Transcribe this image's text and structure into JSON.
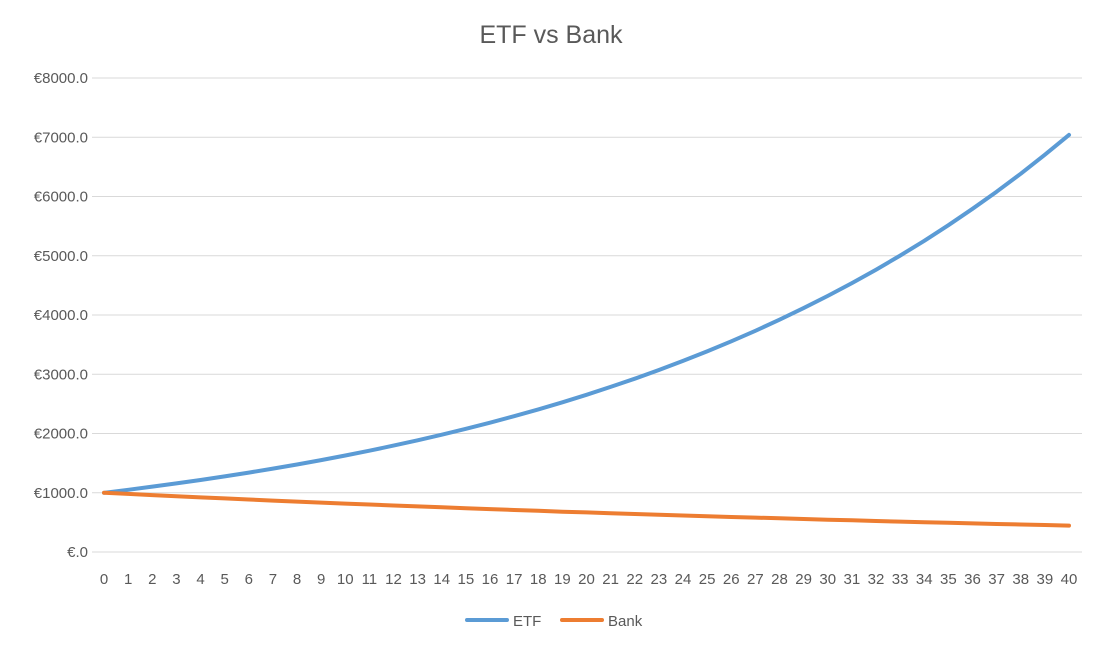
{
  "chart_data": {
    "type": "line",
    "title": "ETF vs Bank",
    "xlabel": "",
    "ylabel": "",
    "x": [
      0,
      1,
      2,
      3,
      4,
      5,
      6,
      7,
      8,
      9,
      10,
      11,
      12,
      13,
      14,
      15,
      16,
      17,
      18,
      19,
      20,
      21,
      22,
      23,
      24,
      25,
      26,
      27,
      28,
      29,
      30,
      31,
      32,
      33,
      34,
      35,
      36,
      37,
      38,
      39,
      40
    ],
    "ylim": [
      0,
      8000
    ],
    "yticks": [
      0,
      1000,
      2000,
      3000,
      4000,
      5000,
      6000,
      7000,
      8000
    ],
    "ytick_labels": [
      "€.0",
      "€1000.0",
      "€2000.0",
      "€3000.0",
      "€4000.0",
      "€5000.0",
      "€6000.0",
      "€7000.0",
      "€8000.0"
    ],
    "grid": true,
    "legend": "bottom",
    "series": [
      {
        "name": "ETF",
        "color": "#5b9bd5",
        "values": [
          1000,
          1050,
          1103,
          1158,
          1216,
          1276,
          1340,
          1407,
          1477,
          1551,
          1629,
          1710,
          1796,
          1886,
          1980,
          2079,
          2183,
          2292,
          2407,
          2527,
          2653,
          2786,
          2925,
          3072,
          3225,
          3386,
          3556,
          3733,
          3920,
          4116,
          4322,
          4538,
          4765,
          5003,
          5253,
          5516,
          5792,
          6081,
          6385,
          6705,
          7040
        ]
      },
      {
        "name": "Bank",
        "color": "#ed7d31",
        "values": [
          1000,
          980,
          960,
          941,
          922,
          904,
          886,
          868,
          851,
          834,
          817,
          801,
          785,
          769,
          754,
          739,
          724,
          709,
          695,
          681,
          668,
          654,
          641,
          628,
          616,
          603,
          591,
          580,
          568,
          557,
          545,
          535,
          524,
          513,
          503,
          493,
          483,
          473,
          464,
          455,
          446
        ]
      }
    ]
  }
}
